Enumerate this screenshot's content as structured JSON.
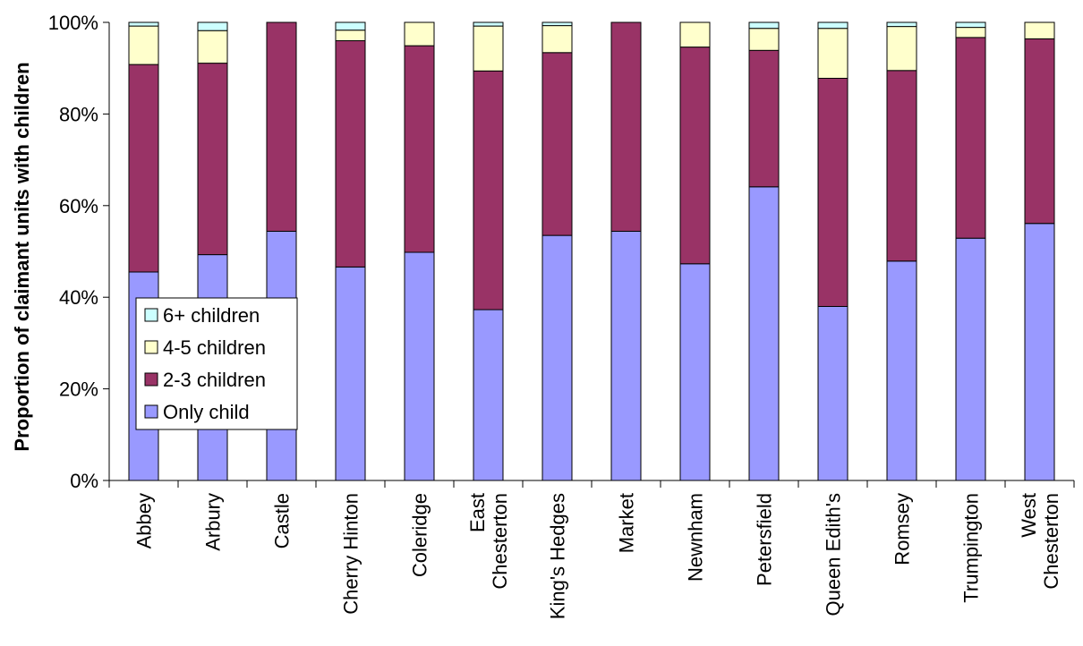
{
  "chart_data": {
    "type": "bar",
    "stacked": true,
    "percent_stacked": true,
    "ylabel": "Proportion of claimant units with children",
    "xlabel": "",
    "ylim": [
      0,
      100
    ],
    "y_ticks": [
      "0%",
      "20%",
      "40%",
      "60%",
      "80%",
      "100%"
    ],
    "y_tick_values": [
      0,
      20,
      40,
      60,
      80,
      100
    ],
    "categories": [
      "Abbey",
      "Arbury",
      "Castle",
      "Cherry Hinton",
      "Coleridge",
      "East Chesterton",
      "King's Hedges",
      "Market",
      "Newnham",
      "Petersfield",
      "Queen Edith's",
      "Romsey",
      "Trumpington",
      "West Chesterton"
    ],
    "category_lines": [
      [
        "Abbey"
      ],
      [
        "Arbury"
      ],
      [
        "Castle"
      ],
      [
        "Cherry Hinton"
      ],
      [
        "Coleridge"
      ],
      [
        "East",
        "Chesterton"
      ],
      [
        "King's Hedges"
      ],
      [
        "Market"
      ],
      [
        "Newnham"
      ],
      [
        "Petersfield"
      ],
      [
        "Queen Edith's"
      ],
      [
        "Romsey"
      ],
      [
        "Trumpington"
      ],
      [
        "West",
        "Chesterton"
      ]
    ],
    "series": [
      {
        "name": "Only child",
        "color": "#9999FF",
        "values": [
          45.5,
          49.3,
          54.4,
          46.6,
          49.8,
          37.3,
          53.5,
          54.4,
          47.3,
          64.1,
          38.0,
          47.9,
          52.9,
          56.1
        ]
      },
      {
        "name": "2-3 children",
        "color": "#993366",
        "values": [
          45.3,
          41.8,
          45.6,
          49.4,
          45.1,
          52.1,
          39.9,
          45.6,
          47.3,
          29.8,
          49.8,
          41.6,
          43.8,
          40.3
        ]
      },
      {
        "name": "4-5 children",
        "color": "#FFFFCC",
        "values": [
          8.4,
          7.1,
          0,
          2.3,
          5.1,
          9.8,
          5.9,
          0,
          5.4,
          4.8,
          10.9,
          9.6,
          2.2,
          3.6
        ]
      },
      {
        "name": "6+ children",
        "color": "#CCFFFF",
        "values": [
          0.8,
          1.8,
          0,
          1.7,
          0,
          0.8,
          0.7,
          0,
          0,
          1.3,
          1.3,
          0.9,
          1.1,
          0
        ]
      }
    ],
    "legend_order": [
      "6+ children",
      "4-5 children",
      "2-3 children",
      "Only child"
    ],
    "legend_position": "left-middle",
    "grid": false
  }
}
